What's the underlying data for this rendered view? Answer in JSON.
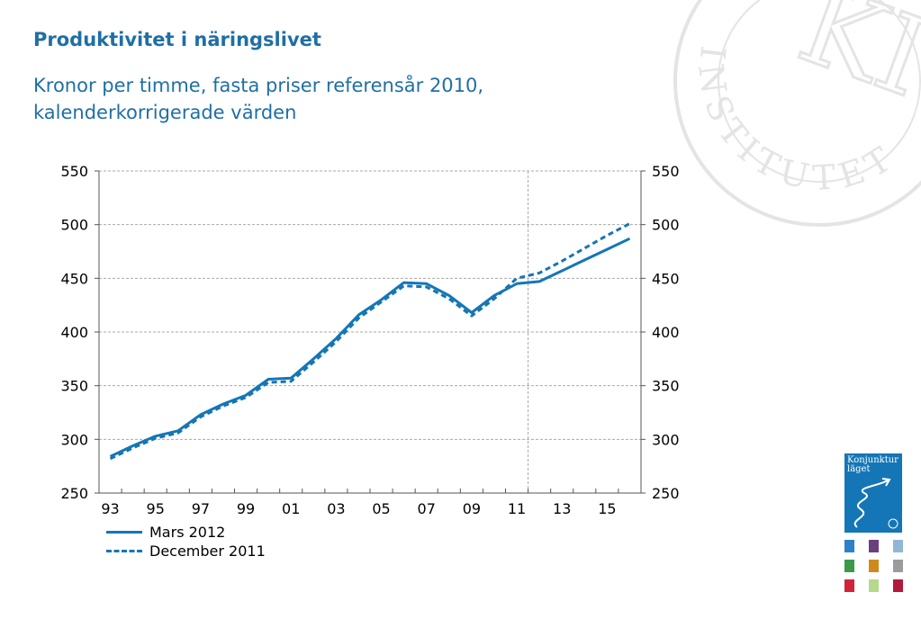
{
  "header": {
    "title": "Produktivitet i näringslivet",
    "subtitle_line1": "Kronor per timme, fasta priser referensår 2010,",
    "subtitle_line2": "kalenderkorrigerade värden"
  },
  "chart_data": {
    "type": "line",
    "ylim": [
      250,
      550
    ],
    "y_ticks": [
      250,
      300,
      350,
      400,
      450,
      500,
      550
    ],
    "y_axes": [
      "left",
      "right"
    ],
    "x_range": [
      1992.5,
      2016.5
    ],
    "x_tick_labels": [
      "93",
      "95",
      "97",
      "99",
      "01",
      "03",
      "05",
      "07",
      "09",
      "11",
      "13",
      "15"
    ],
    "x_tick_years": [
      1993,
      1995,
      1997,
      1999,
      2001,
      2003,
      2005,
      2007,
      2009,
      2011,
      2013,
      2015
    ],
    "grid": "horizontal-dashed",
    "vertical_marker_year": 2011.5,
    "legend_position": "bottom-left",
    "series": [
      {
        "name": "Mars 2012",
        "style": "solid",
        "x": [
          1993,
          1994,
          1995,
          1996,
          1997,
          1998,
          1999,
          2000,
          2001,
          2002,
          2003,
          2004,
          2005,
          2006,
          2007,
          2008,
          2009,
          2010,
          2011,
          2012,
          2013,
          2014,
          2015,
          2016
        ],
        "values": [
          284,
          294,
          303,
          308,
          323,
          333,
          341,
          356,
          357,
          375,
          394,
          416,
          430,
          446,
          445,
          434,
          418,
          434,
          445,
          447,
          457,
          467,
          477,
          487
        ]
      },
      {
        "name": "December 2011",
        "style": "dashed",
        "x": [
          1993,
          1994,
          1995,
          1996,
          1997,
          1998,
          1999,
          2000,
          2001,
          2002,
          2003,
          2004,
          2005,
          2006,
          2007,
          2008,
          2009,
          2010,
          2011,
          2012,
          2013,
          2014,
          2015,
          2016
        ],
        "values": [
          282,
          292,
          301,
          306,
          321,
          331,
          339,
          353,
          354,
          372,
          391,
          413,
          428,
          443,
          442,
          431,
          415,
          431,
          450,
          455,
          466,
          478,
          490,
          501
        ]
      }
    ]
  },
  "colors": {
    "title": "#1f6fa5",
    "series_solid": "#1476b6",
    "series_dashed": "#1476b6",
    "axis": "#555555",
    "grid": "#aaaaaa",
    "seal": "#e4e4e4"
  },
  "branding": {
    "seal_text": "INSTITUTET",
    "seal_monogram": "KI",
    "cover_title": "Konjunktur läget",
    "thumbnail_colors": [
      "#2b82c7",
      "#6b3f7f",
      "#8fb8d6",
      "#3a9a4a",
      "#d08a1b",
      "#9c9c9c",
      "#d0243a",
      "#b5d98b",
      "#b11a3a"
    ]
  }
}
